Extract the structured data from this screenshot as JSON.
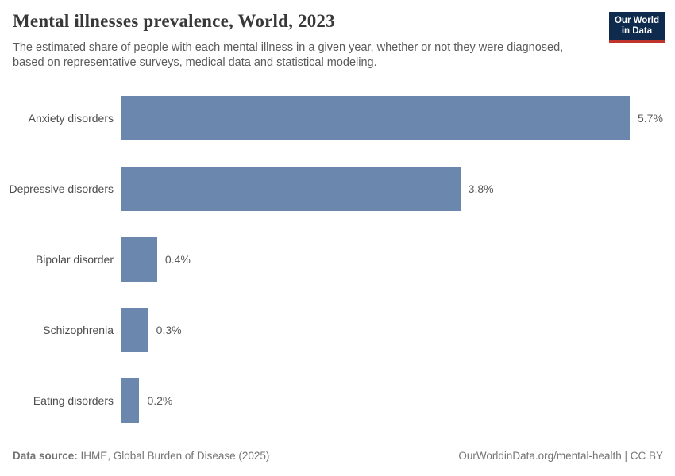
{
  "header": {
    "title": "Mental illnesses prevalence, World, 2023",
    "subtitle": "The estimated share of people with each mental illness in a given year, whether or not they were diagnosed,\nbased on representative surveys, medical data and statistical modeling."
  },
  "logo": {
    "line1": "Our World",
    "line2": "in Data",
    "bg_color": "#0e2a4d",
    "accent_color": "#c0342e"
  },
  "chart_data": {
    "type": "bar",
    "orientation": "horizontal",
    "title": "Mental illnesses prevalence, World, 2023",
    "categories": [
      "Anxiety disorders",
      "Depressive disorders",
      "Bipolar disorder",
      "Schizophrenia",
      "Eating disorders"
    ],
    "values": [
      5.7,
      3.8,
      0.4,
      0.3,
      0.2
    ],
    "value_labels": [
      "5.7%",
      "3.8%",
      "0.4%",
      "0.3%",
      "0.2%"
    ],
    "unit": "%",
    "xlim": [
      0,
      5.7
    ],
    "bar_color": "#6c87ad",
    "axis_color": "#d9d9d9",
    "grid": false,
    "legend": "none"
  },
  "footer": {
    "source_label": "Data source:",
    "source_text": " IHME, Global Burden of Disease (2025)",
    "link_text": "OurWorldinData.org/mental-health | CC BY"
  }
}
